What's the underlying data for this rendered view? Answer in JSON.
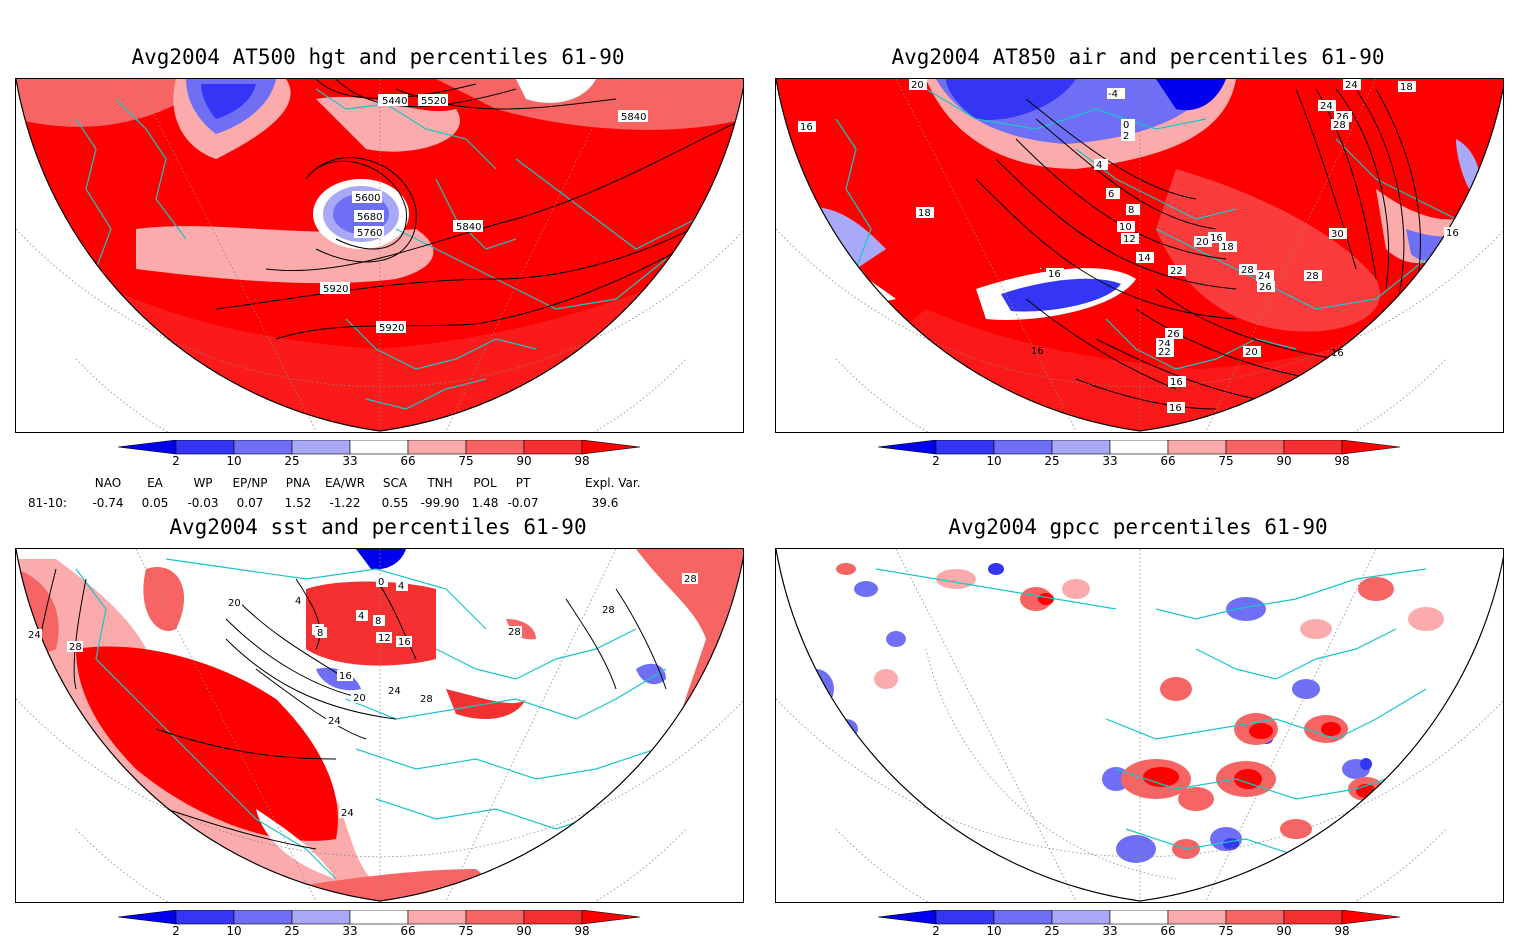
{
  "panels": [
    {
      "title": "Avg2004 AT500 hgt and percentiles 61-90",
      "contour_labels": [
        "5440",
        "5520",
        "5840",
        "5600",
        "5680",
        "5760",
        "5840",
        "5920",
        "5920"
      ]
    },
    {
      "title": "Avg2004 AT850 air and percentiles 61-90",
      "contour_labels": [
        "20",
        "-4",
        "18",
        "24",
        "24",
        "26",
        "28",
        "16",
        "0",
        "2",
        "4",
        "6",
        "8",
        "10",
        "12",
        "14",
        "16",
        "18",
        "16",
        "18",
        "20",
        "22",
        "28",
        "30",
        "24",
        "26",
        "28",
        "16",
        "16",
        "26",
        "24",
        "22",
        "20",
        "16",
        "16",
        "16"
      ]
    },
    {
      "title": "Avg2004 sst and percentiles 61-90",
      "contour_labels": [
        "24",
        "28",
        "20",
        "4",
        "8",
        "0",
        "4",
        "4",
        "8",
        "8",
        "12",
        "16",
        "16",
        "20",
        "24",
        "24",
        "28",
        "28",
        "28",
        "28",
        "24"
      ]
    },
    {
      "title": "Avg2004 gpcc percentiles 61-90",
      "contour_labels": []
    }
  ],
  "colorbar": {
    "labels": [
      "2",
      "10",
      "25",
      "33",
      "66",
      "75",
      "90",
      "98"
    ],
    "colors": {
      "below2": "#0000ee",
      "p2_10": "#3535f5",
      "p10_25": "#6f6ff5",
      "p25_33": "#a9a9f8",
      "p66_75": "#fbabab",
      "p75_90": "#f76464",
      "p90_98": "#f53030",
      "above98": "#ff0000"
    }
  },
  "indices": {
    "header": [
      "NAO",
      "EA",
      "WP",
      "EP/NP",
      "PNA",
      "EA/WR",
      "SCA",
      "TNH",
      "POL",
      "PT",
      "Expl. Var."
    ],
    "row_label": "81-10:",
    "values": [
      "-0.74",
      "0.05",
      "-0.03",
      "0.07",
      "1.52",
      "-1.22",
      "0.55",
      "-99.90",
      "1.48",
      "-0.07",
      "39.6"
    ]
  },
  "map_colors": {
    "coast": "#19c6c6",
    "contour": "#000000",
    "grid": "#888888"
  }
}
